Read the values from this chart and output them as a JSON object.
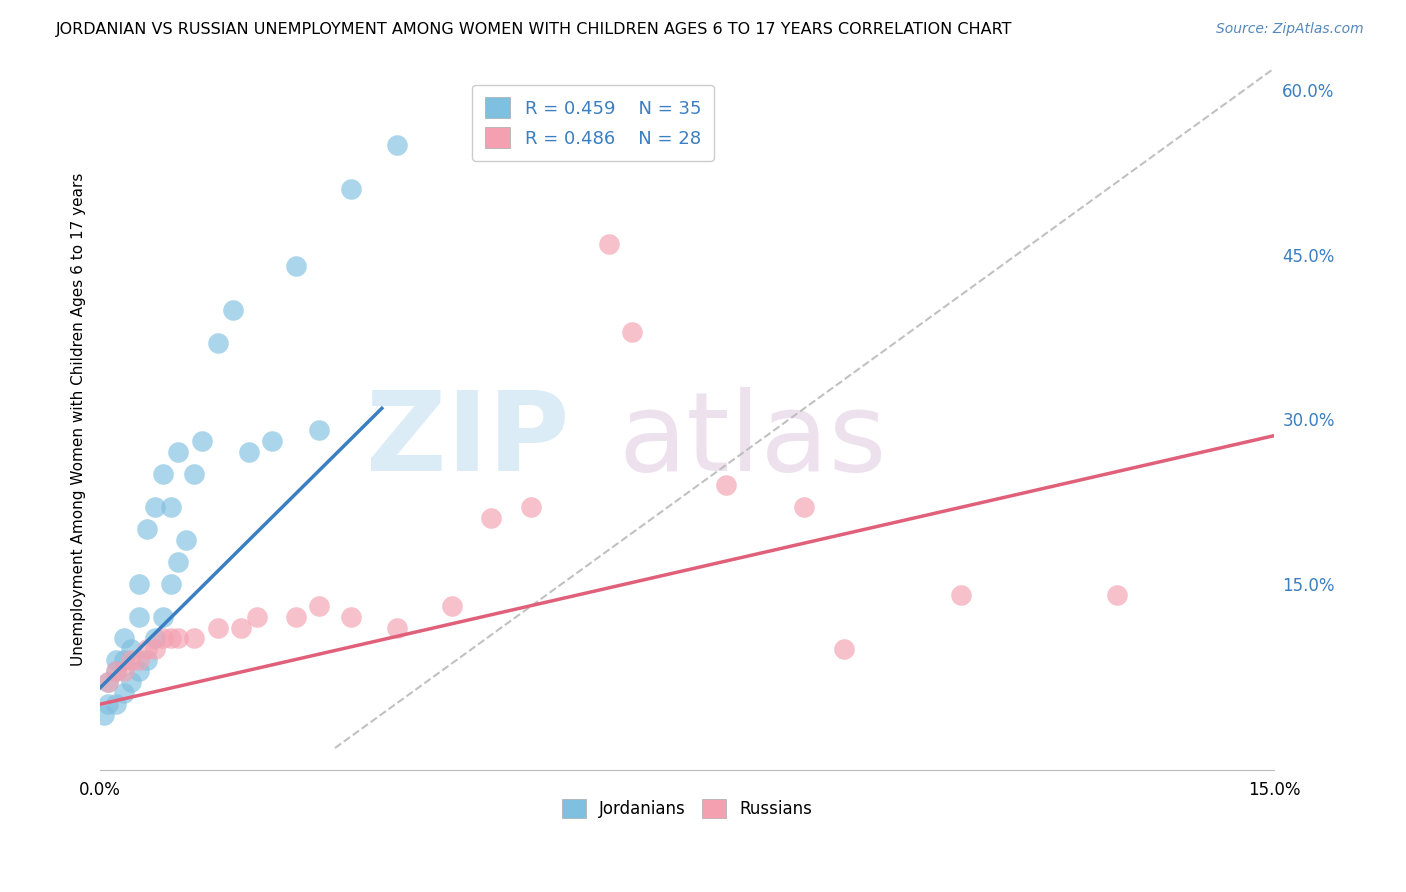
{
  "title": "JORDANIAN VS RUSSIAN UNEMPLOYMENT AMONG WOMEN WITH CHILDREN AGES 6 TO 17 YEARS CORRELATION CHART",
  "source": "Source: ZipAtlas.com",
  "ylabel": "Unemployment Among Women with Children Ages 6 to 17 years",
  "xlim": [
    0.0,
    0.15
  ],
  "ylim": [
    -0.02,
    0.62
  ],
  "color_jordanian": "#7fbfdf",
  "color_russian": "#f4a0b0",
  "color_line_jordanian": "#3a7fc1",
  "color_line_russian": "#e0607a",
  "background_color": "#ffffff",
  "grid_color": "#cccccc",
  "jordanian_x": [
    0.0005,
    0.001,
    0.001,
    0.002,
    0.002,
    0.002,
    0.003,
    0.003,
    0.003,
    0.004,
    0.004,
    0.005,
    0.005,
    0.005,
    0.006,
    0.006,
    0.007,
    0.007,
    0.008,
    0.008,
    0.009,
    0.009,
    0.01,
    0.01,
    0.011,
    0.012,
    0.013,
    0.015,
    0.017,
    0.019,
    0.022,
    0.025,
    0.028,
    0.032,
    0.038
  ],
  "jordanian_y": [
    0.03,
    0.04,
    0.06,
    0.04,
    0.07,
    0.08,
    0.05,
    0.08,
    0.1,
    0.06,
    0.09,
    0.07,
    0.12,
    0.15,
    0.08,
    0.2,
    0.1,
    0.22,
    0.12,
    0.25,
    0.15,
    0.22,
    0.17,
    0.27,
    0.19,
    0.25,
    0.28,
    0.37,
    0.4,
    0.27,
    0.28,
    0.44,
    0.29,
    0.51,
    0.55
  ],
  "russian_x": [
    0.001,
    0.002,
    0.003,
    0.004,
    0.005,
    0.006,
    0.007,
    0.008,
    0.009,
    0.01,
    0.012,
    0.015,
    0.018,
    0.02,
    0.025,
    0.028,
    0.032,
    0.038,
    0.045,
    0.05,
    0.055,
    0.065,
    0.068,
    0.08,
    0.09,
    0.095,
    0.11,
    0.13
  ],
  "russian_y": [
    0.06,
    0.07,
    0.07,
    0.08,
    0.08,
    0.09,
    0.09,
    0.1,
    0.1,
    0.1,
    0.1,
    0.11,
    0.11,
    0.12,
    0.12,
    0.13,
    0.12,
    0.11,
    0.13,
    0.21,
    0.22,
    0.46,
    0.38,
    0.24,
    0.22,
    0.09,
    0.14,
    0.14
  ],
  "jordanian_line_x": [
    0.0,
    0.036
  ],
  "jordanian_line_y": [
    0.055,
    0.31
  ],
  "russian_line_x": [
    0.0,
    0.15
  ],
  "russian_line_y": [
    0.04,
    0.285
  ]
}
